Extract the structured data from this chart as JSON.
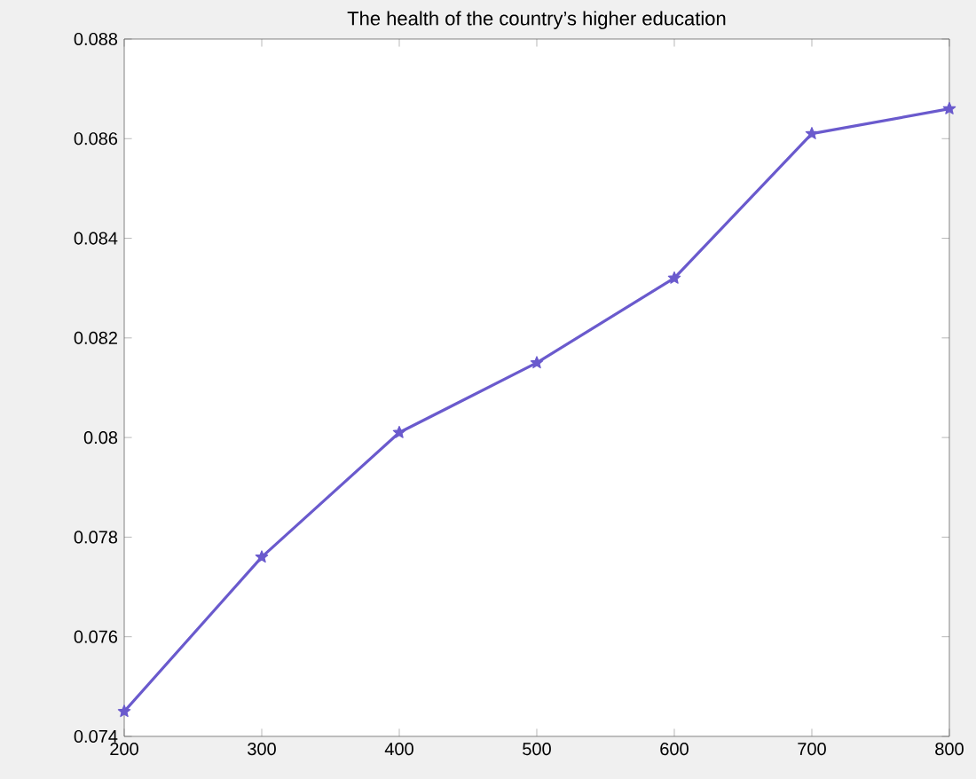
{
  "chart_data": {
    "type": "line",
    "title": "The health of the country’s higher education",
    "x": [
      200,
      300,
      400,
      500,
      600,
      700,
      800
    ],
    "series": [
      {
        "color": "#6a5acd",
        "values": [
          0.0745,
          0.0776,
          0.0801,
          0.0815,
          0.0832,
          0.0861,
          0.0866
        ]
      }
    ],
    "xlim": [
      200,
      800
    ],
    "xticks": [
      200,
      300,
      400,
      500,
      600,
      700,
      800
    ],
    "ylim": [
      0.074,
      0.088
    ],
    "yticks": [
      0.074,
      0.076,
      0.078,
      0.08,
      0.082,
      0.084,
      0.086,
      0.088
    ],
    "marker": "star",
    "line_style": "solid",
    "grid": false
  }
}
